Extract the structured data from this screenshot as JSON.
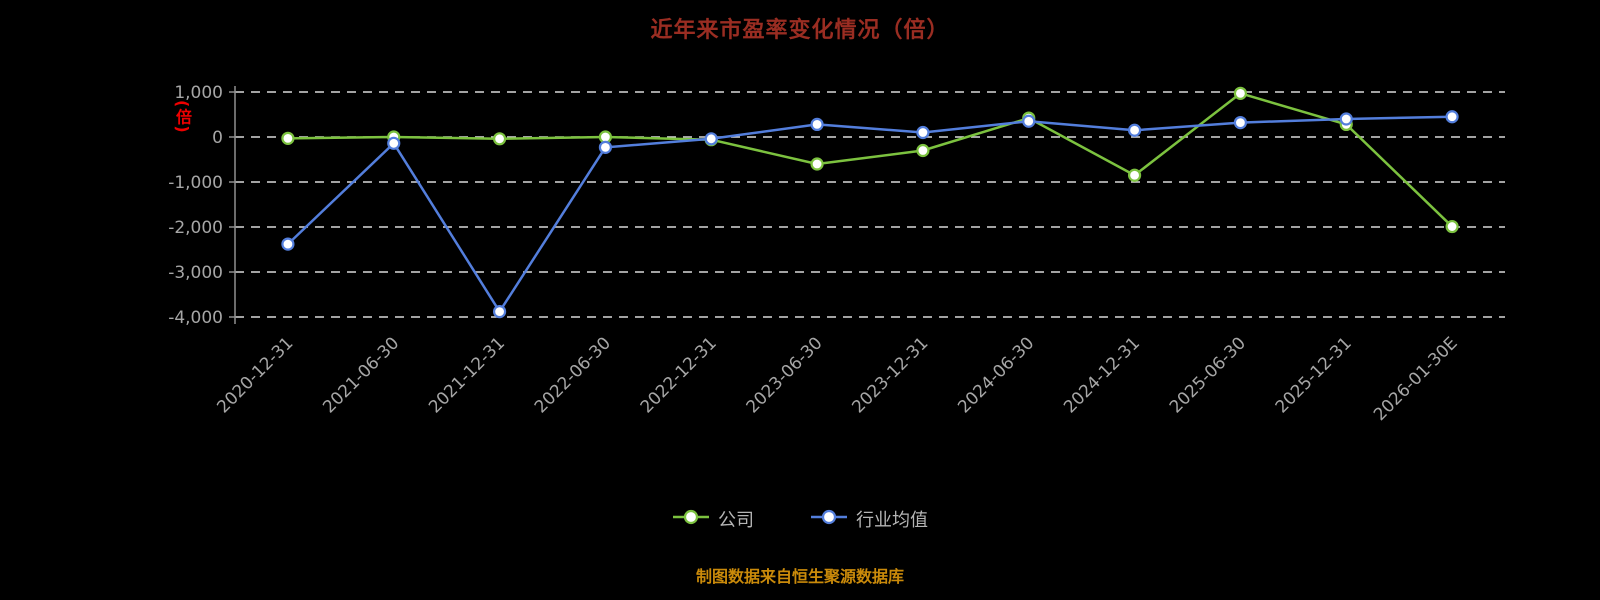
{
  "chart_data": {
    "type": "line",
    "title": "近年来市盈率变化情况（倍）",
    "y_unit": "(倍)",
    "xlabel": "",
    "ylabel": "(倍)",
    "categories": [
      "2020-12-31",
      "2021-06-30",
      "2021-12-31",
      "2022-06-30",
      "2022-12-31",
      "2023-06-30",
      "2023-12-31",
      "2024-06-30",
      "2024-12-31",
      "2025-06-30",
      "2025-12-31",
      "2026-01-30E"
    ],
    "y_ticks": [
      1000,
      0,
      -1000,
      -2000,
      -3000,
      -4000
    ],
    "ylim": [
      -4000,
      1000
    ],
    "grid": "dashed-horizontal",
    "legend_position": "bottom",
    "series": [
      {
        "name": "公司",
        "color": "#7cc23f",
        "values": [
          -30,
          0,
          -40,
          0,
          -60,
          -600,
          -300,
          420,
          -850,
          970,
          280,
          -1990
        ]
      },
      {
        "name": "行业均值",
        "color": "#537edc",
        "values": [
          -2380,
          -140,
          -3880,
          -230,
          -40,
          280,
          100,
          350,
          150,
          320,
          400,
          450
        ]
      }
    ]
  },
  "footer": {
    "note": "制图数据来自恒生聚源数据库"
  },
  "colors": {
    "background": "#000000",
    "title": "#9a2d22",
    "axis_label": "#a6a6a6",
    "grid_line": "#d9d9d9",
    "axis_line": "#8f8f8f",
    "y_unit": "#ee0000",
    "legend_label": "#b5b5b5",
    "footer_note": "#ca8a0a",
    "marker_fill": "#ffffff"
  }
}
